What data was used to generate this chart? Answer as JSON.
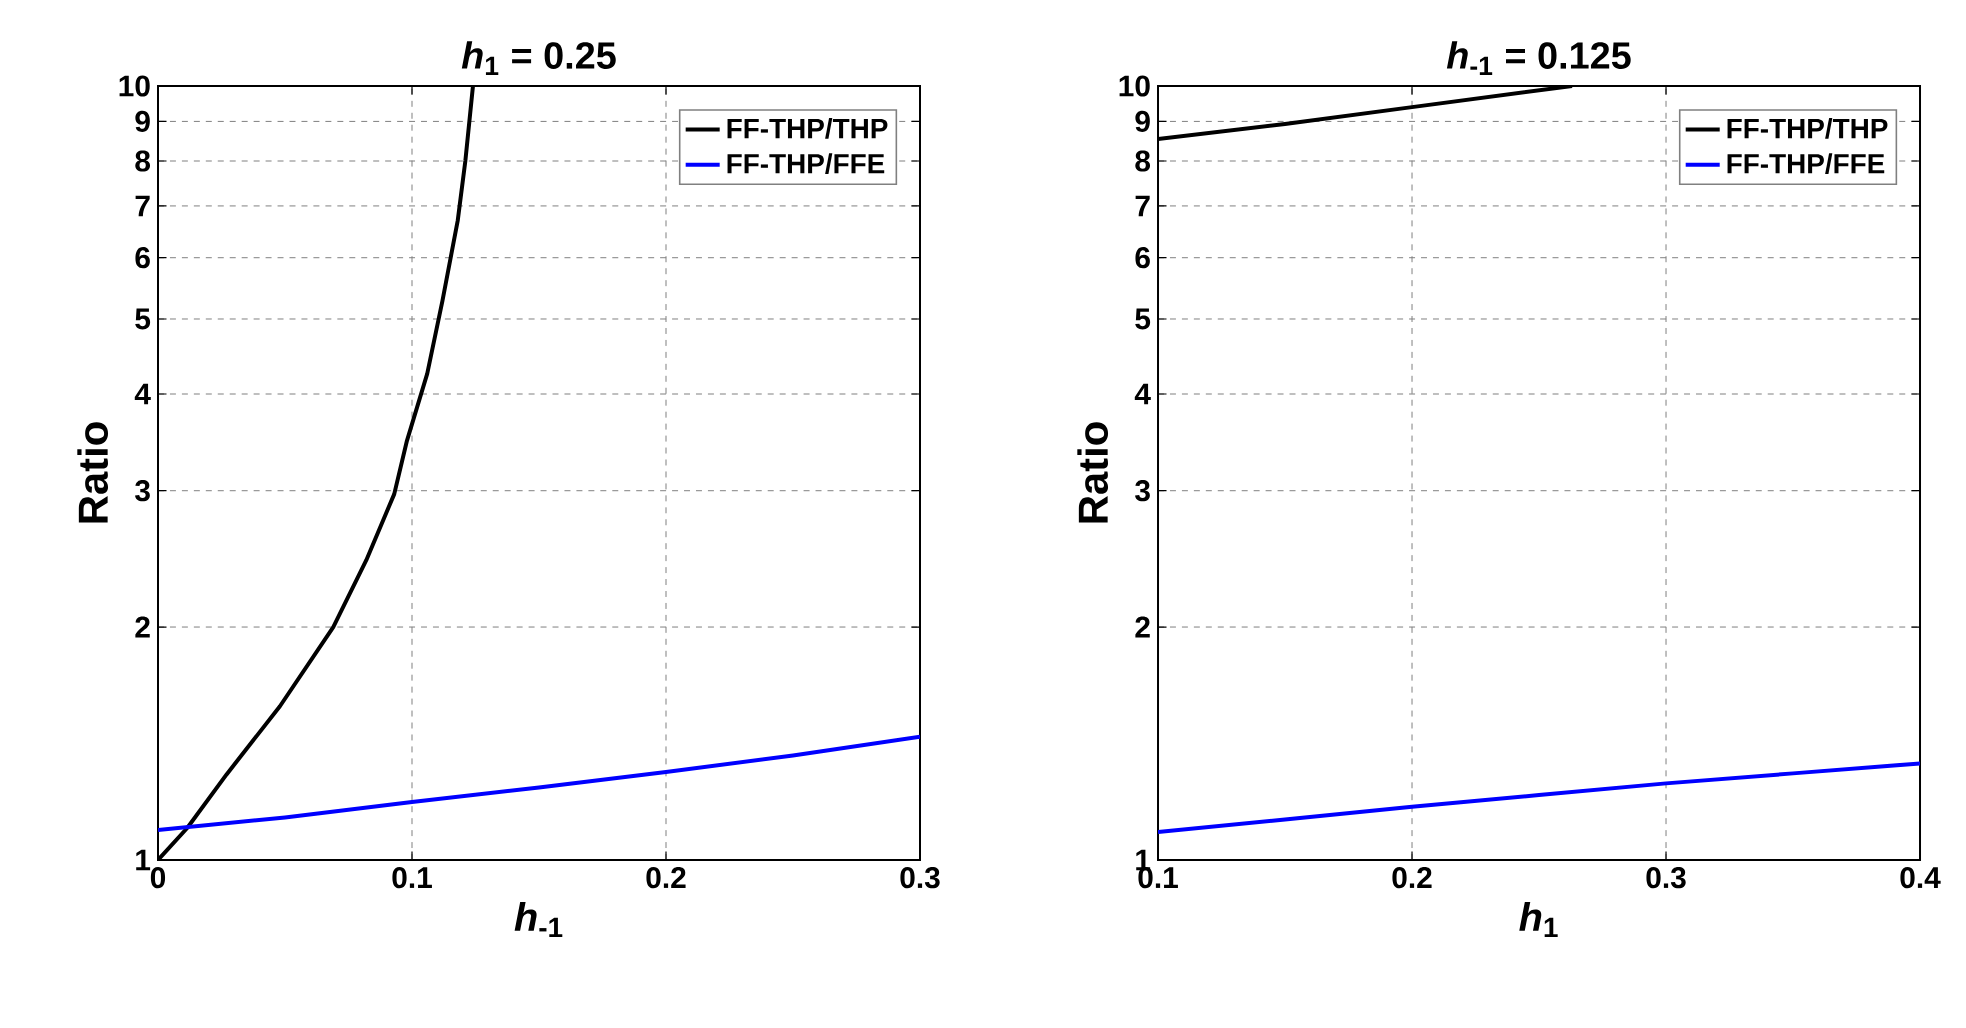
{
  "chart_data": [
    {
      "type": "line",
      "title": "*h*$_{1}$ = 0.25",
      "xlabel": "*h*$_{-1}$",
      "ylabel": "Ratio",
      "log": "y",
      "grid": true,
      "legend": "top right",
      "line_style": "solid",
      "xlim": [
        0,
        0.3
      ],
      "xticks": [
        0,
        0.1,
        0.2,
        0.3
      ],
      "ylim": [
        1,
        10
      ],
      "yticks": [
        1,
        2,
        3,
        4,
        5,
        6,
        7,
        8,
        9,
        10
      ],
      "series": [
        {
          "name": "FF-THP/THP",
          "color": "#000000",
          "x": [
            0,
            0.0115,
            0.027,
            0.048,
            0.069,
            0.082,
            0.093,
            0.098,
            0.106,
            0.112,
            0.118,
            0.121,
            0.124
          ],
          "values": [
            1,
            1.1,
            1.29,
            1.58,
            2.0,
            2.44,
            2.97,
            3.48,
            4.25,
            5.28,
            6.7,
            8.0,
            10
          ]
        },
        {
          "name": "FF-THP/FFE",
          "color": "#0000ff",
          "x": [
            0,
            0.05,
            0.1,
            0.15,
            0.2,
            0.25,
            0.3
          ],
          "values": [
            1.093,
            1.135,
            1.188,
            1.241,
            1.299,
            1.365,
            1.443
          ]
        }
      ]
    },
    {
      "type": "line",
      "title": "*h*$_{-1}$ = 0.125",
      "xlabel": "*h*$_{1}$",
      "ylabel": "Ratio",
      "log": "y",
      "grid": true,
      "legend": "top right",
      "line_style": "solid",
      "xlim": [
        0.1,
        0.4
      ],
      "xticks": [
        0.1,
        0.2,
        0.3,
        0.4
      ],
      "ylim": [
        1,
        10
      ],
      "yticks": [
        1,
        2,
        3,
        4,
        5,
        6,
        7,
        8,
        9,
        10
      ],
      "series": [
        {
          "name": "FF-THP/THP",
          "color": "#000000",
          "x": [
            0.1,
            0.15,
            0.2,
            0.263
          ],
          "values": [
            8.54,
            8.93,
            9.39,
            10
          ]
        },
        {
          "name": "FF-THP/FFE",
          "color": "#0000ff",
          "x": [
            0.1,
            0.15,
            0.2,
            0.25,
            0.3,
            0.35,
            0.4
          ],
          "values": [
            1.087,
            1.128,
            1.172,
            1.213,
            1.256,
            1.294,
            1.333
          ]
        }
      ]
    }
  ]
}
